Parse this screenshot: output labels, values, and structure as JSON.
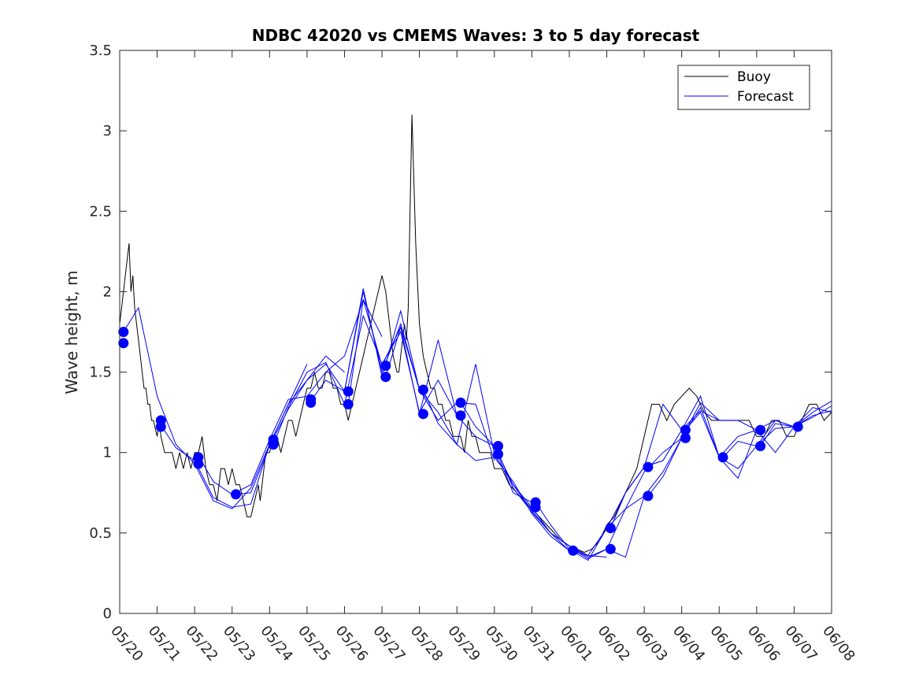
{
  "chart_data": {
    "type": "line",
    "title": "NDBC 42020 vs CMEMS Waves: 3 to 5 day forecast",
    "xlabel": "",
    "ylabel": "Wave height, m",
    "xlim": [
      0,
      19
    ],
    "ylim": [
      0,
      3.5
    ],
    "y_ticks": [
      "0",
      "0.5",
      "1",
      "1.5",
      "2",
      "2.5",
      "3",
      "3.5"
    ],
    "x_ticks": [
      "05/20",
      "05/21",
      "05/22",
      "05/23",
      "05/24",
      "05/25",
      "05/26",
      "05/27",
      "05/28",
      "05/29",
      "05/30",
      "05/31",
      "06/01",
      "06/02",
      "06/03",
      "06/04",
      "06/05",
      "06/06",
      "06/07",
      "06/08"
    ],
    "grid": false,
    "legend": {
      "position": "top-right",
      "entries": [
        "Buoy",
        "Forecast"
      ]
    },
    "colors": {
      "buoy": "#000000",
      "forecast": "#0000ff",
      "axes": "#262626"
    },
    "series": [
      {
        "name": "Buoy",
        "x": [
          0.0,
          0.05,
          0.1,
          0.15,
          0.2,
          0.25,
          0.3,
          0.35,
          0.4,
          0.45,
          0.5,
          0.55,
          0.6,
          0.65,
          0.7,
          0.75,
          0.8,
          0.85,
          0.9,
          1.0,
          1.05,
          1.1,
          1.2,
          1.3,
          1.4,
          1.5,
          1.6,
          1.7,
          1.8,
          1.9,
          2.0,
          2.1,
          2.2,
          2.3,
          2.4,
          2.5,
          2.6,
          2.7,
          2.8,
          2.9,
          3.0,
          3.1,
          3.2,
          3.3,
          3.4,
          3.5,
          3.6,
          3.7,
          3.75,
          3.8,
          3.85,
          3.9,
          3.95,
          4.0,
          4.1,
          4.2,
          4.3,
          4.4,
          4.5,
          4.6,
          4.7,
          4.8,
          4.9,
          5.0,
          5.1,
          5.2,
          5.3,
          5.4,
          5.5,
          5.6,
          5.7,
          5.8,
          5.9,
          6.0,
          6.1,
          6.2,
          6.3,
          6.4,
          6.5,
          6.6,
          6.7,
          6.8,
          6.9,
          7.0,
          7.1,
          7.2,
          7.3,
          7.4,
          7.45,
          7.5,
          7.55,
          7.6,
          7.65,
          7.7,
          7.75,
          7.8,
          7.9,
          8.0,
          8.1,
          8.2,
          8.3,
          8.4,
          8.5,
          8.6,
          8.7,
          8.8,
          8.9,
          9.0,
          9.1,
          9.2,
          9.3,
          9.4,
          9.5,
          9.6,
          9.7,
          9.8,
          9.9,
          10.0,
          10.2,
          10.4,
          10.6,
          10.8,
          11.0,
          11.2,
          11.4,
          11.6,
          11.8,
          12.0,
          12.2,
          12.4,
          12.6,
          12.8,
          13.0,
          13.2,
          13.4,
          13.6,
          13.8,
          14.0,
          14.2,
          14.4,
          14.6,
          14.8,
          15.0,
          15.2,
          15.4,
          15.6,
          15.8,
          16.0,
          16.2,
          16.4,
          16.6,
          16.8,
          17.0,
          17.2,
          17.4,
          17.6,
          17.8,
          18.0,
          18.2,
          18.4,
          18.6,
          18.8,
          19.0
        ],
        "values": [
          1.8,
          1.9,
          2.0,
          2.1,
          2.2,
          2.3,
          2.0,
          2.1,
          1.9,
          1.8,
          1.7,
          1.6,
          1.5,
          1.4,
          1.4,
          1.3,
          1.3,
          1.2,
          1.2,
          1.1,
          1.2,
          1.1,
          1.0,
          1.0,
          1.0,
          0.9,
          1.0,
          0.9,
          1.0,
          0.9,
          1.0,
          1.0,
          1.1,
          0.9,
          0.8,
          0.8,
          0.7,
          0.9,
          0.9,
          0.8,
          0.9,
          0.8,
          0.8,
          0.7,
          0.6,
          0.6,
          0.7,
          0.8,
          0.7,
          0.8,
          0.9,
          1.0,
          1.0,
          1.0,
          1.1,
          1.1,
          1.0,
          1.1,
          1.2,
          1.2,
          1.1,
          1.2,
          1.3,
          1.4,
          1.4,
          1.5,
          1.4,
          1.4,
          1.5,
          1.5,
          1.4,
          1.4,
          1.3,
          1.3,
          1.2,
          1.3,
          1.4,
          1.5,
          1.6,
          1.7,
          1.8,
          1.9,
          2.0,
          2.1,
          2.0,
          1.8,
          1.6,
          1.5,
          1.5,
          1.6,
          1.7,
          1.8,
          1.7,
          1.9,
          2.5,
          3.1,
          2.3,
          1.8,
          1.6,
          1.5,
          1.4,
          1.4,
          1.3,
          1.3,
          1.2,
          1.2,
          1.1,
          1.1,
          1.1,
          1.0,
          1.2,
          1.1,
          1.1,
          1.0,
          1.0,
          1.0,
          1.0,
          0.9,
          0.9,
          0.8,
          0.75,
          0.7,
          0.65,
          0.6,
          0.55,
          0.5,
          0.45,
          0.42,
          0.4,
          0.38,
          0.4,
          0.45,
          0.55,
          0.6,
          0.7,
          0.8,
          0.9,
          1.1,
          1.3,
          1.3,
          1.2,
          1.3,
          1.35,
          1.4,
          1.35,
          1.25,
          1.2,
          1.2,
          1.2,
          1.2,
          1.2,
          1.2,
          1.1,
          1.1,
          1.2,
          1.2,
          1.1,
          1.1,
          1.2,
          1.3,
          1.3,
          1.2,
          1.25
        ]
      },
      {
        "name": "Forecast",
        "runs": [
          {
            "x": [
              0.1,
              0.5,
              1.0,
              1.5,
              2.0,
              2.5,
              3.0,
              3.5,
              4.0,
              4.5,
              5.0
            ],
            "values": [
              1.75,
              1.9,
              1.35,
              1.05,
              0.93,
              0.7,
              0.65,
              0.78,
              1.05,
              1.3,
              1.55
            ]
          },
          {
            "x": [
              1.1,
              1.5,
              2.0,
              2.5,
              3.0,
              3.5,
              4.0,
              4.5,
              5.0,
              5.5,
              6.0
            ],
            "values": [
              1.17,
              1.03,
              0.95,
              0.72,
              0.66,
              0.68,
              1.05,
              1.3,
              1.45,
              1.6,
              1.5
            ]
          },
          {
            "x": [
              2.1,
              2.5,
              3.0,
              3.5,
              4.0,
              4.5,
              5.0,
              5.5,
              6.0,
              6.5,
              7.0
            ],
            "values": [
              0.98,
              0.82,
              0.74,
              0.8,
              1.08,
              1.33,
              1.35,
              1.5,
              1.6,
              1.95,
              1.72
            ]
          },
          {
            "x": [
              3.1,
              3.5,
              4.0,
              4.5,
              5.0,
              5.5,
              6.0,
              6.5,
              7.0,
              7.5,
              8.0
            ],
            "values": [
              0.74,
              0.75,
              1.04,
              1.27,
              1.45,
              1.55,
              1.38,
              2.0,
              1.5,
              1.8,
              1.39
            ]
          },
          {
            "x": [
              4.1,
              4.5,
              5.0,
              5.5,
              6.0,
              6.5,
              7.0,
              7.5,
              8.0,
              8.5,
              9.0
            ],
            "values": [
              1.05,
              1.28,
              1.5,
              1.56,
              1.3,
              1.85,
              1.55,
              1.75,
              1.25,
              1.45,
              1.23
            ]
          },
          {
            "x": [
              5.1,
              5.5,
              6.0,
              6.5,
              7.0,
              7.5,
              8.0,
              8.5,
              9.0,
              9.5,
              10.0
            ],
            "values": [
              1.32,
              1.45,
              1.38,
              2.02,
              1.47,
              1.88,
              1.39,
              1.2,
              1.31,
              1.3,
              0.95
            ]
          },
          {
            "x": [
              6.1,
              6.5,
              7.0,
              7.5,
              8.0,
              8.5,
              9.0,
              9.5,
              10.0,
              10.5,
              11.0
            ],
            "values": [
              1.3,
              1.95,
              1.54,
              1.78,
              1.24,
              1.7,
              1.23,
              1.1,
              1.04,
              0.75,
              0.69
            ]
          },
          {
            "x": [
              7.1,
              7.5,
              8.0,
              8.5,
              9.0,
              9.5,
              10.0,
              10.5,
              11.0,
              11.5,
              12.0
            ],
            "values": [
              1.47,
              1.78,
              1.39,
              1.25,
              1.05,
              1.55,
              0.99,
              0.8,
              0.66,
              0.5,
              0.39
            ]
          },
          {
            "x": [
              8.1,
              8.5,
              9.0,
              9.5,
              10.0,
              10.5,
              11.0,
              11.5,
              12.0,
              12.5,
              13.0
            ],
            "values": [
              1.39,
              1.18,
              1.05,
              0.95,
              0.97,
              0.82,
              0.62,
              0.48,
              0.39,
              0.36,
              0.35
            ]
          },
          {
            "x": [
              9.1,
              9.5,
              10.0,
              10.5,
              11.0,
              11.5,
              12.0,
              12.5,
              13.0,
              13.5,
              14.0
            ],
            "values": [
              1.31,
              1.16,
              1.04,
              0.8,
              0.64,
              0.5,
              0.42,
              0.36,
              0.53,
              0.65,
              0.73
            ]
          },
          {
            "x": [
              10.1,
              10.5,
              11.0,
              11.5,
              12.0,
              12.5,
              13.0,
              13.5,
              14.0,
              14.5,
              15.0
            ],
            "values": [
              1.0,
              0.78,
              0.63,
              0.5,
              0.42,
              0.35,
              0.4,
              0.35,
              0.73,
              0.88,
              1.09
            ]
          },
          {
            "x": [
              11.1,
              11.5,
              12.0,
              12.5,
              13.0,
              13.5,
              14.0,
              14.5,
              15.0,
              15.5,
              16.0
            ],
            "values": [
              0.69,
              0.55,
              0.4,
              0.33,
              0.53,
              0.75,
              0.91,
              0.95,
              1.14,
              1.26,
              1.2
            ]
          },
          {
            "x": [
              12.1,
              12.5,
              13.0,
              13.5,
              14.0,
              14.5,
              15.0,
              15.5,
              16.0,
              16.5,
              17.0
            ],
            "values": [
              0.4,
              0.34,
              0.4,
              0.65,
              0.88,
              1.0,
              1.09,
              1.31,
              1.2,
              1.2,
              1.14
            ]
          },
          {
            "x": [
              13.1,
              13.5,
              14.0,
              14.5,
              15.0,
              15.5,
              16.0,
              16.5,
              17.0,
              17.5,
              18.0
            ],
            "values": [
              0.53,
              0.75,
              0.91,
              1.3,
              1.14,
              1.35,
              0.97,
              0.9,
              1.04,
              1.2,
              1.16
            ]
          },
          {
            "x": [
              14.1,
              14.5,
              15.0,
              15.5,
              16.0,
              16.5,
              17.0,
              17.5,
              18.0,
              18.5,
              19.0
            ],
            "values": [
              0.73,
              0.85,
              1.09,
              1.28,
              0.97,
              1.1,
              1.14,
              1.0,
              1.16,
              1.25,
              1.32
            ]
          },
          {
            "x": [
              15.1,
              15.5,
              16.0,
              16.5,
              17.0,
              17.5,
              18.0,
              18.5,
              19.0
            ],
            "values": [
              1.14,
              1.25,
              0.97,
              0.84,
              1.14,
              1.2,
              1.16,
              1.23,
              1.26
            ]
          },
          {
            "x": [
              16.1,
              16.5,
              17.0,
              17.5,
              18.0,
              18.5,
              19.0
            ],
            "values": [
              0.97,
              1.07,
              1.04,
              1.15,
              1.16,
              1.28,
              1.25
            ]
          },
          {
            "x": [
              17.1,
              17.5,
              18.0,
              18.5,
              19.0
            ],
            "values": [
              1.04,
              1.18,
              1.16,
              1.22,
              1.29
            ]
          }
        ],
        "markers": {
          "x": [
            0.1,
            0.1,
            1.1,
            1.1,
            2.1,
            2.1,
            3.1,
            4.1,
            4.1,
            5.1,
            5.1,
            6.1,
            6.1,
            7.1,
            7.1,
            8.1,
            8.1,
            9.1,
            9.1,
            10.1,
            10.1,
            11.1,
            11.1,
            12.1,
            13.1,
            13.1,
            14.1,
            14.1,
            15.1,
            15.1,
            16.1,
            17.1,
            17.1,
            18.1
          ],
          "values": [
            1.75,
            1.68,
            1.2,
            1.16,
            0.97,
            0.93,
            0.74,
            1.08,
            1.05,
            1.33,
            1.31,
            1.38,
            1.3,
            1.54,
            1.47,
            1.39,
            1.24,
            1.31,
            1.23,
            1.04,
            0.99,
            0.69,
            0.66,
            0.39,
            0.53,
            0.4,
            0.91,
            0.73,
            1.14,
            1.09,
            0.97,
            1.14,
            1.04,
            1.16
          ]
        }
      }
    ]
  }
}
